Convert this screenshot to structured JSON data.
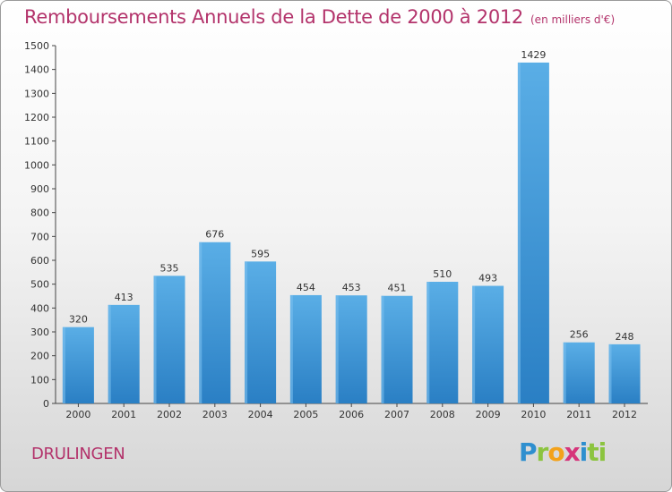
{
  "chart_data": {
    "type": "bar",
    "title": "Remboursements Annuels de la Dette de 2000 à 2012",
    "subtitle": "(en milliers d'€)",
    "categories": [
      "2000",
      "2001",
      "2002",
      "2003",
      "2004",
      "2005",
      "2006",
      "2007",
      "2008",
      "2009",
      "2010",
      "2011",
      "2012"
    ],
    "values": [
      320,
      413,
      535,
      676,
      595,
      454,
      453,
      451,
      510,
      493,
      1429,
      256,
      248
    ],
    "ylim": [
      0,
      1500
    ],
    "yticks": [
      0,
      100,
      200,
      300,
      400,
      500,
      600,
      700,
      800,
      900,
      1000,
      1100,
      1200,
      1300,
      1400,
      1500
    ],
    "xlabel": "",
    "ylabel": "",
    "grid": false
  },
  "location": "DRULINGEN",
  "brand": {
    "letters": [
      "P",
      "r",
      "o",
      "x",
      "i",
      "ti"
    ],
    "colors": [
      "#2e8fcf",
      "#8cc43f",
      "#f3a21b",
      "#d6347a",
      "#2e8fcf",
      "#8cc43f"
    ]
  },
  "colors": {
    "title": "#b3336b",
    "bar_light": "#5aaee6",
    "bar_dark": "#2a7fc4"
  }
}
